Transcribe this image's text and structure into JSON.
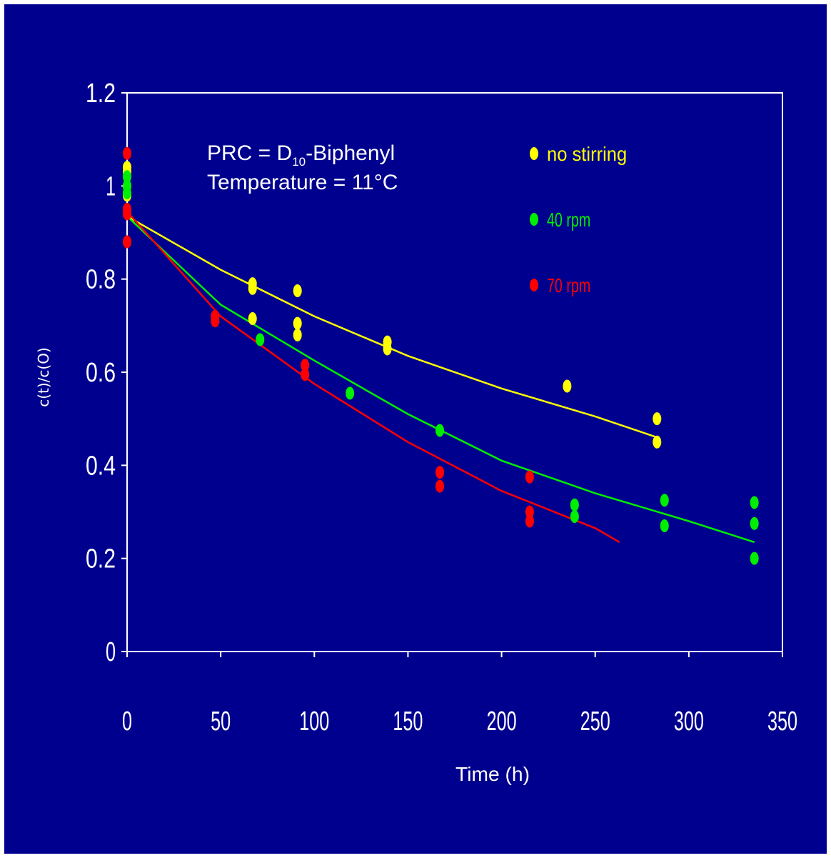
{
  "chart_data": {
    "type": "scatter",
    "xlabel": "Time (h)",
    "ylabel": "c(t)/c(O)",
    "xlim": [
      0,
      350
    ],
    "ylim": [
      0,
      1.2
    ],
    "xticks": [
      "0",
      "50",
      "100",
      "150",
      "200",
      "250",
      "300",
      "350"
    ],
    "yticks": [
      "0",
      "0.2",
      "0.4",
      "0.6",
      "0.8",
      "1",
      "1.2"
    ],
    "grid": false,
    "legend_position": "top-right",
    "annotation": {
      "line1_prefix": "PRC = D",
      "line1_sub": "10",
      "line1_suffix": "-Biphenyl",
      "line2": "Temperature = 11°C"
    },
    "series": [
      {
        "name": "no stirring",
        "color": "#ffff00",
        "points": [
          [
            0,
            1.04
          ],
          [
            0,
            1.03
          ],
          [
            0,
            1.0
          ],
          [
            0,
            0.98
          ],
          [
            67,
            0.79
          ],
          [
            67,
            0.78
          ],
          [
            67,
            0.715
          ],
          [
            91,
            0.775
          ],
          [
            91,
            0.705
          ],
          [
            91,
            0.68
          ],
          [
            139,
            0.665
          ],
          [
            139,
            0.65
          ],
          [
            235,
            0.57
          ],
          [
            283,
            0.5
          ],
          [
            283,
            0.45
          ]
        ],
        "fit": [
          [
            0,
            0.935
          ],
          [
            50,
            0.82
          ],
          [
            100,
            0.72
          ],
          [
            150,
            0.635
          ],
          [
            200,
            0.565
          ],
          [
            250,
            0.505
          ],
          [
            283,
            0.46
          ]
        ]
      },
      {
        "name": "40 rpm",
        "color": "#00ee00",
        "points": [
          [
            0,
            1.02
          ],
          [
            0,
            1.0
          ],
          [
            0,
            0.985
          ],
          [
            71,
            0.67
          ],
          [
            119,
            0.555
          ],
          [
            167,
            0.475
          ],
          [
            239,
            0.315
          ],
          [
            239,
            0.29
          ],
          [
            287,
            0.325
          ],
          [
            287,
            0.27
          ],
          [
            335,
            0.32
          ],
          [
            335,
            0.275
          ],
          [
            335,
            0.2
          ]
        ],
        "fit": [
          [
            0,
            0.935
          ],
          [
            50,
            0.745
          ],
          [
            100,
            0.625
          ],
          [
            150,
            0.51
          ],
          [
            200,
            0.41
          ],
          [
            250,
            0.34
          ],
          [
            300,
            0.28
          ],
          [
            335,
            0.235
          ]
        ]
      },
      {
        "name": "70 rpm",
        "color": "#ff0000",
        "points": [
          [
            0,
            1.07
          ],
          [
            0,
            0.95
          ],
          [
            0,
            0.94
          ],
          [
            0,
            0.88
          ],
          [
            47,
            0.72
          ],
          [
            47,
            0.71
          ],
          [
            95,
            0.615
          ],
          [
            95,
            0.595
          ],
          [
            167,
            0.385
          ],
          [
            167,
            0.355
          ],
          [
            215,
            0.375
          ],
          [
            215,
            0.3
          ],
          [
            215,
            0.28
          ]
        ],
        "fit": [
          [
            0,
            0.945
          ],
          [
            50,
            0.72
          ],
          [
            100,
            0.575
          ],
          [
            150,
            0.45
          ],
          [
            200,
            0.345
          ],
          [
            250,
            0.265
          ],
          [
            263,
            0.235
          ]
        ]
      }
    ]
  }
}
